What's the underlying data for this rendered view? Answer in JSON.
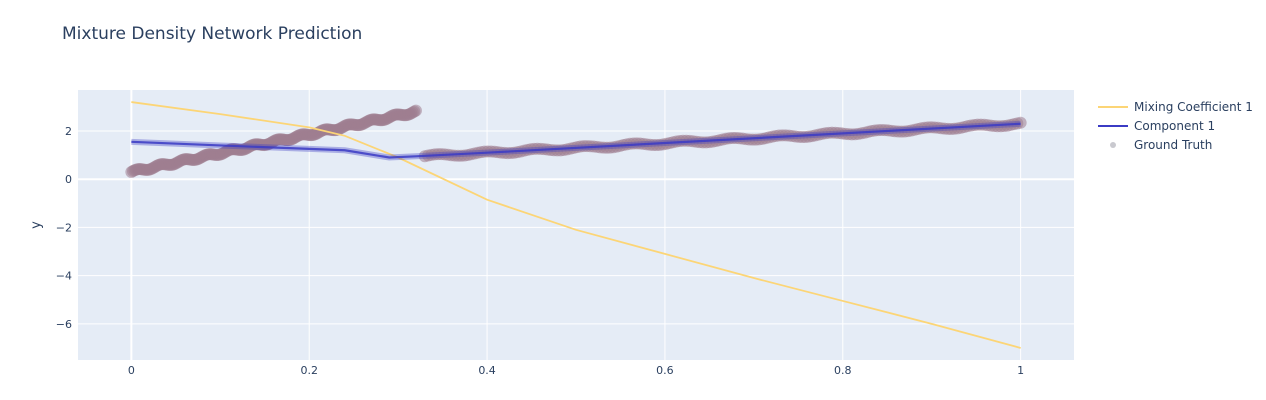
{
  "chart_data": {
    "type": "line",
    "title": "Mixture Density Network Prediction",
    "xlabel": "",
    "ylabel": "y",
    "xlim": [
      -0.06,
      1.06
    ],
    "ylim": [
      -7.5,
      3.7
    ],
    "x_ticks": [
      0,
      0.2,
      0.4,
      0.6,
      0.8,
      1
    ],
    "x_tick_labels": [
      "0",
      "0.2",
      "0.4",
      "0.6",
      "0.8",
      "1"
    ],
    "y_ticks": [
      2,
      0,
      -2,
      -4,
      -6
    ],
    "y_tick_labels": [
      "2",
      "0",
      "−2",
      "−4",
      "−6"
    ],
    "grid": true,
    "legend_position": "top-right",
    "series": [
      {
        "name": "Mixing Coefficient 1",
        "kind": "line",
        "color": "#fcd576",
        "x": [
          0,
          0.1,
          0.2,
          0.24,
          0.3,
          0.4,
          0.5,
          0.6,
          0.7,
          0.8,
          0.9,
          1
        ],
        "y": [
          3.2,
          2.7,
          2.15,
          1.8,
          0.9,
          -0.85,
          -2.1,
          -3.1,
          -4.1,
          -5.05,
          -6.0,
          -7.0
        ]
      },
      {
        "name": "Component 1",
        "kind": "line",
        "color": "#3b3bc4",
        "x": [
          0,
          0.1,
          0.24,
          0.29,
          0.32,
          0.4,
          0.6,
          0.8,
          1
        ],
        "y": [
          1.55,
          1.4,
          1.2,
          0.9,
          0.95,
          1.1,
          1.5,
          1.9,
          2.3
        ]
      },
      {
        "name": "Ground Truth",
        "kind": "scatter",
        "color": "#9e7d8f",
        "legend_color": "#c9c9cf",
        "segments": [
          {
            "x": [
              0,
              0.32
            ],
            "y": [
              0.3,
              2.8
            ]
          },
          {
            "x": [
              0.33,
              1
            ],
            "y": [
              0.95,
              2.3
            ]
          }
        ]
      }
    ]
  }
}
